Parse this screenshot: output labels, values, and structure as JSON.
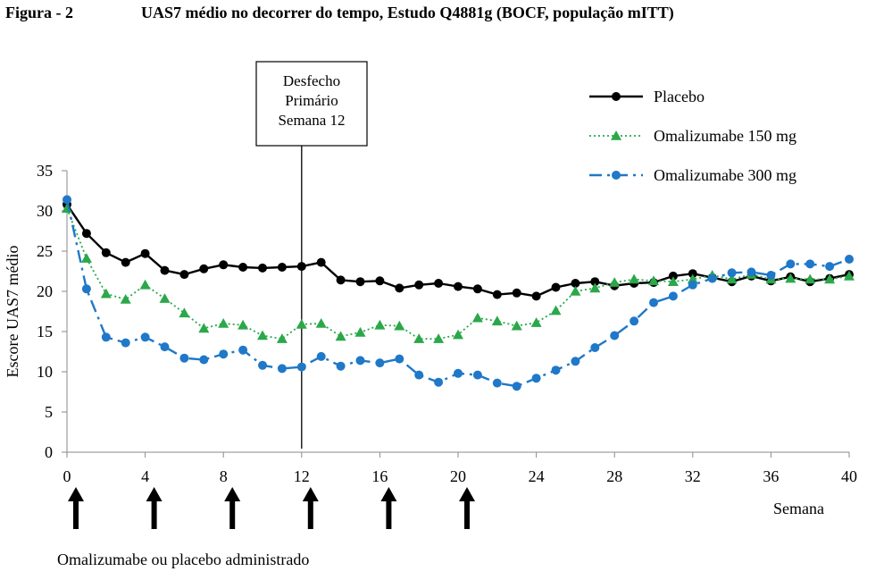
{
  "figure": {
    "label": "Figura - 2",
    "title": "UAS7 médio no decorrer do tempo, Estudo Q4881g (BOCF, população mITT)"
  },
  "caption": "Omalizumabe ou placebo administrado",
  "annotation": {
    "lines": [
      "Desfecho",
      "Primário",
      "Semana 12"
    ],
    "x": 12
  },
  "chart_data": {
    "type": "line",
    "title": "UAS7 médio no decorrer do tempo, Estudo Q4881g (BOCF, população mITT)",
    "xlabel": "Semana",
    "ylabel": "Escore UAS7 médio",
    "xlim": [
      0,
      40
    ],
    "ylim": [
      0,
      35
    ],
    "xticks": [
      0,
      4,
      8,
      12,
      16,
      20,
      24,
      28,
      32,
      36,
      40
    ],
    "yticks": [
      0,
      5,
      10,
      15,
      20,
      25,
      30,
      35
    ],
    "legend_position": "top-right",
    "dosing_weeks": [
      0,
      4,
      8,
      12,
      16,
      20
    ],
    "x": [
      0,
      1,
      2,
      3,
      4,
      5,
      6,
      7,
      8,
      9,
      10,
      11,
      12,
      13,
      14,
      15,
      16,
      17,
      18,
      19,
      20,
      21,
      22,
      23,
      24,
      25,
      26,
      27,
      28,
      29,
      30,
      31,
      32,
      33,
      34,
      35,
      36,
      37,
      38,
      39,
      40
    ],
    "series": [
      {
        "name": "Placebo",
        "color": "#000000",
        "marker": "circle",
        "dash": "solid",
        "values": [
          30.8,
          27.2,
          24.8,
          23.6,
          24.7,
          22.6,
          22.1,
          22.8,
          23.3,
          23.0,
          22.9,
          23.0,
          23.1,
          23.6,
          21.4,
          21.2,
          21.3,
          20.4,
          20.8,
          21.0,
          20.6,
          20.3,
          19.6,
          19.8,
          19.4,
          20.5,
          21.0,
          21.2,
          20.7,
          21.0,
          21.1,
          21.9,
          22.2,
          21.7,
          21.2,
          21.9,
          21.3,
          21.8,
          21.2,
          21.6,
          22.1
        ]
      },
      {
        "name": "Omalizumabe 150 mg",
        "color": "#2aa84a",
        "marker": "triangle",
        "dash": "dotted",
        "values": [
          30.3,
          24.1,
          19.7,
          19.0,
          20.8,
          19.1,
          17.3,
          15.4,
          16.0,
          15.8,
          14.5,
          14.1,
          15.9,
          16.0,
          14.4,
          14.9,
          15.8,
          15.7,
          14.1,
          14.1,
          14.6,
          16.7,
          16.3,
          15.7,
          16.1,
          17.6,
          20.0,
          20.4,
          21.1,
          21.5,
          21.3,
          21.2,
          21.5,
          22.0,
          21.5,
          22.1,
          21.5,
          21.6,
          21.5,
          21.5,
          21.9
        ]
      },
      {
        "name": "Omalizumabe 300 mg",
        "color": "#1f78c8",
        "marker": "circle",
        "dash": "dashdot",
        "values": [
          31.4,
          20.3,
          14.3,
          13.6,
          14.3,
          13.1,
          11.7,
          11.5,
          12.2,
          12.7,
          10.8,
          10.4,
          10.6,
          11.9,
          10.7,
          11.4,
          11.1,
          11.6,
          9.6,
          8.7,
          9.8,
          9.6,
          8.6,
          8.2,
          9.2,
          10.2,
          11.3,
          13.0,
          14.5,
          16.3,
          18.6,
          19.4,
          20.8,
          21.6,
          22.3,
          22.4,
          22.0,
          23.4,
          23.4,
          23.1,
          24.0
        ]
      }
    ]
  }
}
